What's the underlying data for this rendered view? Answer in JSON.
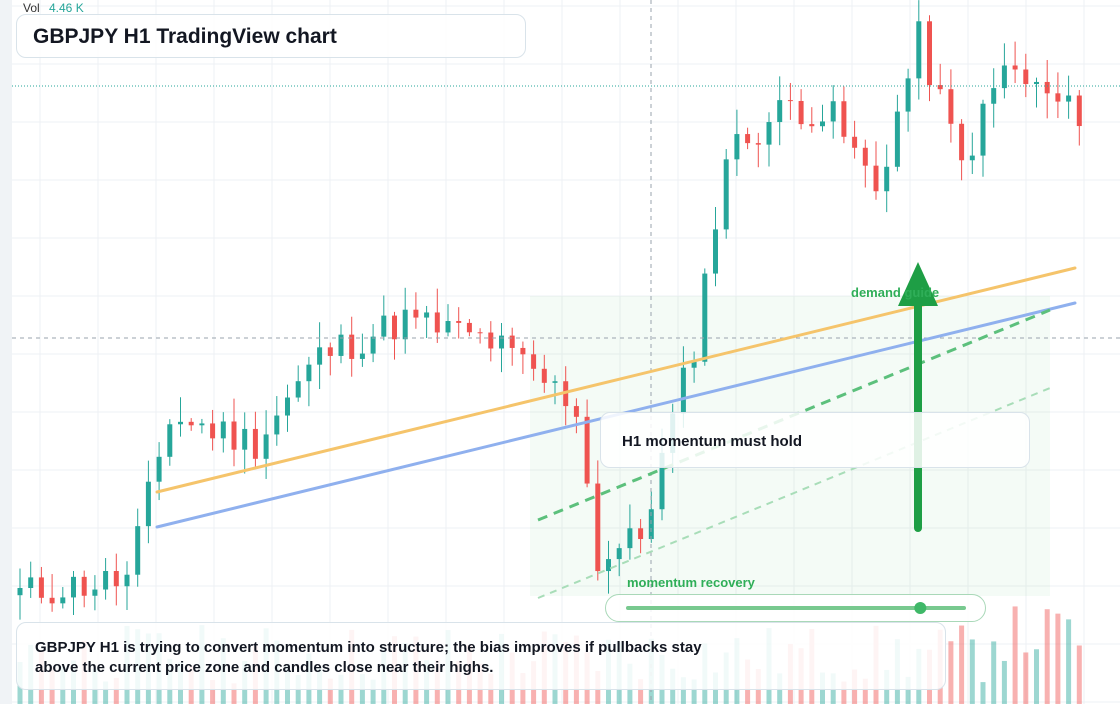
{
  "header": {
    "vol_label": "Vol",
    "vol_value": "4.46 K"
  },
  "title": "GBPJPY H1 TradingView chart",
  "annotations": {
    "note": "H1 momentum must hold",
    "caption": "GBPJPY H1 is trying to convert momentum into structure; the bias improves if pullbacks stay above the current price zone and candles close near their highs.",
    "demand_label": "demand guide",
    "recovery_label": "momentum recovery",
    "recovery_level": 0.87
  },
  "colors": {
    "up": "#26a69a",
    "down": "#ef5350",
    "trend_orange": "#f5c46b",
    "trend_blue": "#8fb0ee",
    "accent_green": "#1e9e45"
  },
  "chart_data": {
    "type": "candlestick",
    "symbol": "GBPJPY",
    "timeframe": "H1",
    "candles_shown": 100,
    "bias": "up",
    "volume_last": "4.46 K",
    "waypoints": [
      {
        "i": 0,
        "v": 0.06
      },
      {
        "i": 10,
        "v": 0.1
      },
      {
        "i": 14,
        "v": 0.55
      },
      {
        "i": 22,
        "v": 0.48
      },
      {
        "i": 28,
        "v": 0.72
      },
      {
        "i": 36,
        "v": 0.82
      },
      {
        "i": 44,
        "v": 0.76
      },
      {
        "i": 52,
        "v": 0.58
      },
      {
        "i": 54,
        "v": 0.15
      },
      {
        "i": 58,
        "v": 0.22
      },
      {
        "i": 63,
        "v": 0.75
      },
      {
        "i": 66,
        "v": 1.28
      },
      {
        "i": 72,
        "v": 1.42
      },
      {
        "i": 76,
        "v": 1.38
      },
      {
        "i": 80,
        "v": 1.18
      },
      {
        "i": 84,
        "v": 1.6
      },
      {
        "i": 88,
        "v": 1.25
      },
      {
        "i": 92,
        "v": 1.52
      },
      {
        "i": 98,
        "v": 1.4
      }
    ]
  }
}
